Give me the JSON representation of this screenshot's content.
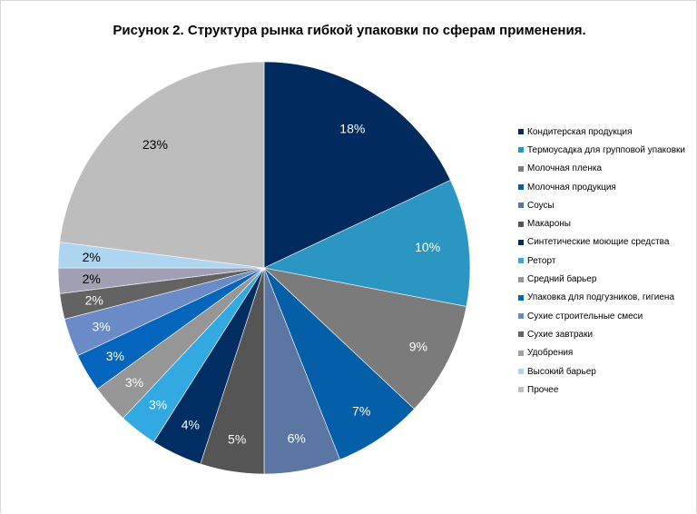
{
  "chart_data": {
    "type": "pie",
    "title": "Рисунок 2. Структура  рынка гибкой упаковки по сферам применения.",
    "legend_position": "right",
    "label_format": "percent",
    "slices": [
      {
        "label": "Кондитерская продукция",
        "value": 18,
        "display": "18%",
        "color": "#012a5e",
        "label_color": "#ffffff"
      },
      {
        "label": "Термоусадка для групповой упаковки",
        "value": 10,
        "display": "10%",
        "color": "#2b96c2",
        "label_color": "#ffffff"
      },
      {
        "label": "Молочная пленка",
        "value": 9,
        "display": "9%",
        "color": "#7b7b7b",
        "label_color": "#ffffff"
      },
      {
        "label": "Молочная продукция",
        "value": 7,
        "display": "7%",
        "color": "#045ea8",
        "label_color": "#ffffff"
      },
      {
        "label": "Соусы",
        "value": 6,
        "display": "6%",
        "color": "#5b76a3",
        "label_color": "#ffffff"
      },
      {
        "label": "Макароны",
        "value": 5,
        "display": "5%",
        "color": "#555555",
        "label_color": "#ffffff"
      },
      {
        "label": "Синтетические моющие средства",
        "value": 4,
        "display": "4%",
        "color": "#002e63",
        "label_color": "#ffffff"
      },
      {
        "label": "Реторт",
        "value": 3,
        "display": "3%",
        "color": "#32a9e1",
        "label_color": "#ffffff"
      },
      {
        "label": "Средний барьер",
        "value": 3,
        "display": "3%",
        "color": "#969696",
        "label_color": "#ffffff"
      },
      {
        "label": "Упаковка для подгузников, гигиена",
        "value": 3,
        "display": "3%",
        "color": "#0465bd",
        "label_color": "#ffffff"
      },
      {
        "label": "Сухие  строительные смеси",
        "value": 3,
        "display": "3%",
        "color": "#6b8bc8",
        "label_color": "#ffffff"
      },
      {
        "label": "Сухие  завтраки",
        "value": 2,
        "display": "2%",
        "color": "#636363",
        "label_color": "#ffffff"
      },
      {
        "label": "Удобрения",
        "value": 2,
        "display": "2%",
        "color": "#a09fb3",
        "label_color": "#000000"
      },
      {
        "label": "Высокий барьер",
        "value": 2,
        "display": "2%",
        "color": "#aed5ef",
        "label_color": "#000000"
      },
      {
        "label": "Прочее",
        "value": 23,
        "display": "23%",
        "color": "#bdbdbd",
        "label_color": "#000000"
      }
    ]
  }
}
